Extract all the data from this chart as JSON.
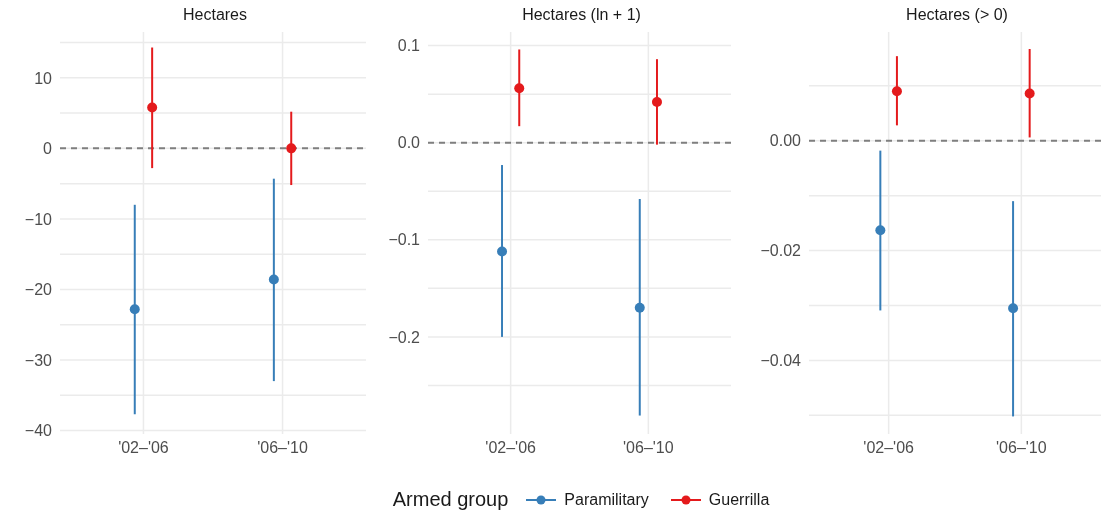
{
  "chart_data": [
    {
      "type": "scatter",
      "title": "Hectares",
      "categories": [
        "'02–'06",
        "'06–'10"
      ],
      "ylim": [
        -40.5,
        16.5
      ],
      "yticks": [
        {
          "value": -40,
          "label": "−40"
        },
        {
          "value": -35,
          "label": null
        },
        {
          "value": -30,
          "label": "−30"
        },
        {
          "value": -25,
          "label": null
        },
        {
          "value": -20,
          "label": "−20"
        },
        {
          "value": -15,
          "label": null
        },
        {
          "value": -10,
          "label": "−10"
        },
        {
          "value": -5,
          "label": null
        },
        0,
        {
          "value": 5,
          "label": null
        },
        10,
        {
          "value": 15,
          "label": null
        }
      ],
      "grid": true,
      "marker": "circle",
      "legend": "bottom",
      "legend_title": "Armed group",
      "ref_lines": [
        {
          "axis": "y",
          "value": 0,
          "color": "#7f7f7f",
          "line_style": "dashed"
        }
      ],
      "series": [
        {
          "name": "Paramilitary",
          "color": "#377eb8",
          "values": [
            -22.8,
            -18.6
          ],
          "errors": [
            [
              -37.7,
              -8
            ],
            [
              -33,
              -4.3
            ]
          ]
        },
        {
          "name": "Guerrilla",
          "color": "#e41a1c",
          "values": [
            5.8,
            0
          ],
          "errors": [
            [
              -2.8,
              14.3
            ],
            [
              -5.2,
              5.2
            ]
          ]
        }
      ]
    },
    {
      "type": "scatter",
      "title": "Hectares (ln + 1)",
      "categories": [
        "'02–'06",
        "'06–'10"
      ],
      "ylim": [
        -0.3,
        0.114
      ],
      "yticks": [
        {
          "value": -0.25,
          "label": null
        },
        {
          "value": -0.2,
          "label": "−0.2"
        },
        {
          "value": -0.15,
          "label": null
        },
        {
          "value": -0.1,
          "label": "−0.1"
        },
        {
          "value": -0.05,
          "label": null
        },
        {
          "value": 0,
          "label": "0.0"
        },
        {
          "value": 0.05,
          "label": null
        },
        0.1
      ],
      "grid": true,
      "marker": "circle",
      "ref_lines": [
        {
          "axis": "y",
          "value": 0,
          "color": "#7f7f7f",
          "line_style": "dashed"
        }
      ],
      "series": [
        {
          "color": "#377eb8",
          "values": [
            -0.112,
            -0.17
          ],
          "errors": [
            [
              -0.2,
              -0.023
            ],
            [
              -0.281,
              -0.058
            ]
          ]
        },
        {
          "color": "#e41a1c",
          "values": [
            0.056,
            0.042
          ],
          "errors": [
            [
              0.017,
              0.096
            ],
            [
              -0.002,
              0.086
            ]
          ]
        }
      ]
    },
    {
      "type": "scatter",
      "title": "Hectares (> 0)",
      "categories": [
        "'02–'06",
        "'06–'10"
      ],
      "ylim": [
        -0.0534,
        0.0198
      ],
      "yticks": [
        {
          "value": -0.05,
          "label": null
        },
        {
          "value": -0.04,
          "label": "−0.04"
        },
        {
          "value": -0.03,
          "label": null
        },
        {
          "value": -0.02,
          "label": "−0.02"
        },
        {
          "value": -0.01,
          "label": null
        },
        {
          "value": 0,
          "label": "0.00"
        },
        {
          "value": 0.01,
          "label": null
        }
      ],
      "grid": true,
      "marker": "circle",
      "ref_lines": [
        {
          "axis": "y",
          "value": 0,
          "color": "#7f7f7f",
          "line_style": "dashed"
        }
      ],
      "series": [
        {
          "color": "#377eb8",
          "values": [
            -0.0163,
            -0.0305
          ],
          "errors": [
            [
              -0.0309,
              -0.0018
            ],
            [
              -0.0502,
              -0.011
            ]
          ]
        },
        {
          "color": "#e41a1c",
          "values": [
            0.009,
            0.0086
          ],
          "errors": [
            [
              0.0028,
              0.0154
            ],
            [
              0.0006,
              0.0167
            ]
          ]
        }
      ]
    }
  ]
}
